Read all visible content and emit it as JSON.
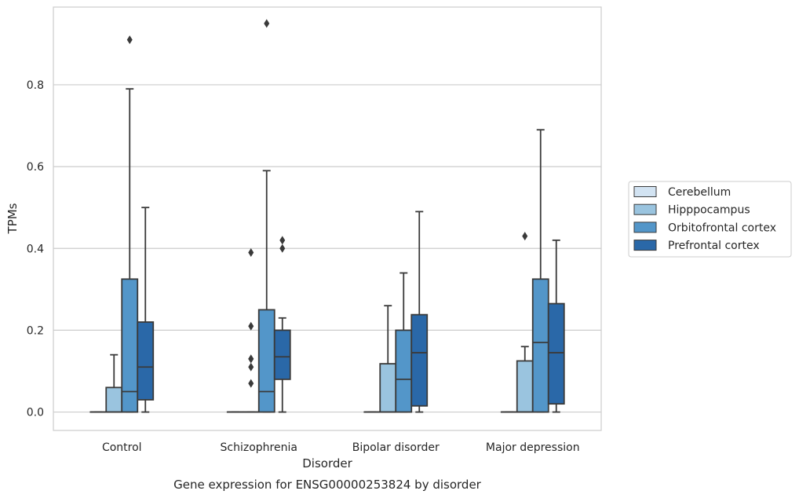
{
  "chart_data": {
    "type": "boxplot",
    "caption": "Gene expression for ENSG00000253824 by disorder",
    "xlabel": "Disorder",
    "ylabel": "TPMs",
    "ylim": [
      -0.045,
      0.99
    ],
    "yticks": [
      0.0,
      0.2,
      0.4,
      0.6,
      0.8
    ],
    "ytick_labels": [
      "0.0",
      "0.2",
      "0.4",
      "0.6",
      "0.8"
    ],
    "grid": true,
    "legend_position": "right",
    "categories": [
      "Control",
      "Schizophrenia",
      "Bipolar disorder",
      "Major depression"
    ],
    "series": [
      {
        "name": "Cerebellum",
        "color": "#d2e3f2",
        "boxes": [
          {
            "min": 0.0,
            "q1": 0.0,
            "median": 0.0,
            "q3": 0.0,
            "max": 0.0,
            "outliers": []
          },
          {
            "min": 0.0,
            "q1": 0.0,
            "median": 0.0,
            "q3": 0.0,
            "max": 0.0,
            "outliers": []
          },
          {
            "min": 0.0,
            "q1": 0.0,
            "median": 0.0,
            "q3": 0.0,
            "max": 0.0,
            "outliers": []
          },
          {
            "min": 0.0,
            "q1": 0.0,
            "median": 0.0,
            "q3": 0.0,
            "max": 0.0,
            "outliers": []
          }
        ]
      },
      {
        "name": "Hipppocampus",
        "color": "#9ac4df",
        "boxes": [
          {
            "min": 0.0,
            "q1": 0.0,
            "median": 0.0,
            "q3": 0.06,
            "max": 0.14,
            "outliers": []
          },
          {
            "min": 0.0,
            "q1": 0.0,
            "median": 0.0,
            "q3": 0.0,
            "max": 0.0,
            "outliers": [
              0.07,
              0.11,
              0.13,
              0.13,
              0.21,
              0.39
            ]
          },
          {
            "min": 0.0,
            "q1": 0.0,
            "median": 0.0,
            "q3": 0.118,
            "max": 0.26,
            "outliers": []
          },
          {
            "min": 0.0,
            "q1": 0.0,
            "median": 0.0,
            "q3": 0.125,
            "max": 0.16,
            "outliers": [
              0.43
            ]
          }
        ]
      },
      {
        "name": "Orbitofrontal cortex",
        "color": "#5396c9",
        "boxes": [
          {
            "min": 0.0,
            "q1": 0.0,
            "median": 0.05,
            "q3": 0.325,
            "max": 0.79,
            "outliers": [
              0.91
            ]
          },
          {
            "min": 0.0,
            "q1": 0.0,
            "median": 0.05,
            "q3": 0.25,
            "max": 0.59,
            "outliers": [
              0.95
            ]
          },
          {
            "min": 0.0,
            "q1": 0.0,
            "median": 0.08,
            "q3": 0.2,
            "max": 0.34,
            "outliers": []
          },
          {
            "min": 0.0,
            "q1": 0.0,
            "median": 0.17,
            "q3": 0.325,
            "max": 0.69,
            "outliers": []
          }
        ]
      },
      {
        "name": "Prefrontal cortex",
        "color": "#2a68a8",
        "boxes": [
          {
            "min": 0.0,
            "q1": 0.03,
            "median": 0.11,
            "q3": 0.22,
            "max": 0.5,
            "outliers": []
          },
          {
            "min": 0.0,
            "q1": 0.08,
            "median": 0.135,
            "q3": 0.2,
            "max": 0.23,
            "outliers": [
              0.4,
              0.42
            ]
          },
          {
            "min": 0.0,
            "q1": 0.015,
            "median": 0.145,
            "q3": 0.238,
            "max": 0.49,
            "outliers": []
          },
          {
            "min": 0.0,
            "q1": 0.02,
            "median": 0.145,
            "q3": 0.265,
            "max": 0.42,
            "outliers": []
          }
        ]
      }
    ],
    "colors": {
      "edge": "#3a3a3a",
      "grid": "#cccccc",
      "frame": "#cccccc",
      "outlier": "#3a3a3a"
    }
  }
}
